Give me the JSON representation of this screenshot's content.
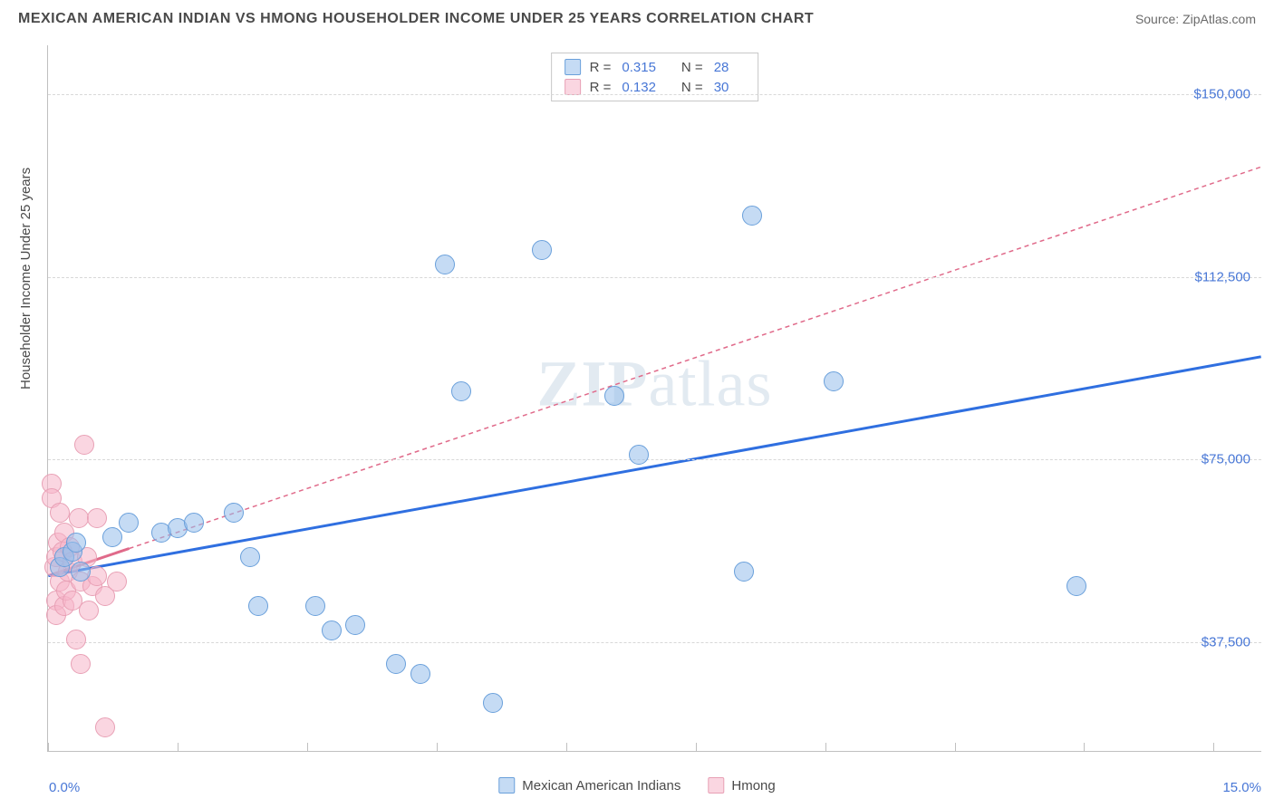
{
  "title": "MEXICAN AMERICAN INDIAN VS HMONG HOUSEHOLDER INCOME UNDER 25 YEARS CORRELATION CHART",
  "source": "Source: ZipAtlas.com",
  "watermark": "ZIPatlas",
  "chart": {
    "type": "scatter",
    "ylabel": "Householder Income Under 25 years",
    "xlim": [
      0,
      15
    ],
    "ylim": [
      15000,
      160000
    ],
    "x_ticks": [
      0,
      1.6,
      3.2,
      4.8,
      6.4,
      8.0,
      9.6,
      11.2,
      12.8,
      14.4
    ],
    "x_tick_labels": {
      "0": "0.0%",
      "15": "15.0%"
    },
    "y_ticks": [
      37500,
      75000,
      112500,
      150000
    ],
    "y_tick_labels": [
      "$37,500",
      "$75,000",
      "$112,500",
      "$150,000"
    ],
    "grid_color": "#d8d8d8",
    "background_color": "#ffffff",
    "axis_color": "#c0c0c0",
    "tick_label_color": "#4877d6",
    "marker_radius": 11,
    "series": {
      "blue": {
        "label": "Mexican American Indians",
        "fill": "rgba(150,190,235,0.55)",
        "stroke": "#6aa0db",
        "R": "0.315",
        "N": "28",
        "trend": {
          "x1": 0,
          "y1": 51000,
          "x2": 15,
          "y2": 96000,
          "color": "#2f6fe0",
          "width": 3,
          "dash": "none"
        },
        "points": [
          [
            0.15,
            53000
          ],
          [
            0.2,
            55000
          ],
          [
            0.3,
            56000
          ],
          [
            0.35,
            58000
          ],
          [
            0.4,
            52000
          ],
          [
            0.8,
            59000
          ],
          [
            1.0,
            62000
          ],
          [
            1.4,
            60000
          ],
          [
            1.6,
            61000
          ],
          [
            1.8,
            62000
          ],
          [
            2.3,
            64000
          ],
          [
            2.5,
            55000
          ],
          [
            2.6,
            45000
          ],
          [
            3.3,
            45000
          ],
          [
            3.5,
            40000
          ],
          [
            3.8,
            41000
          ],
          [
            4.3,
            33000
          ],
          [
            4.6,
            31000
          ],
          [
            4.9,
            115000
          ],
          [
            5.1,
            89000
          ],
          [
            5.5,
            25000
          ],
          [
            6.1,
            118000
          ],
          [
            7.0,
            88000
          ],
          [
            7.3,
            76000
          ],
          [
            8.6,
            52000
          ],
          [
            8.7,
            125000
          ],
          [
            9.7,
            91000
          ],
          [
            12.7,
            49000
          ]
        ]
      },
      "pink": {
        "label": "Hmong",
        "fill": "rgba(245,180,200,0.55)",
        "stroke": "#e8a0b5",
        "R": "0.132",
        "N": "30",
        "trend": {
          "x1": 0,
          "y1": 51000,
          "x2": 15,
          "y2": 135000,
          "color": "#e06a8a",
          "width": 1.5,
          "dash": "5,4",
          "solid_until": 1.0
        },
        "points": [
          [
            0.05,
            70000
          ],
          [
            0.05,
            67000
          ],
          [
            0.08,
            53000
          ],
          [
            0.1,
            55000
          ],
          [
            0.1,
            46000
          ],
          [
            0.1,
            43000
          ],
          [
            0.12,
            58000
          ],
          [
            0.15,
            64000
          ],
          [
            0.15,
            50000
          ],
          [
            0.18,
            56000
          ],
          [
            0.2,
            45000
          ],
          [
            0.2,
            60000
          ],
          [
            0.22,
            48000
          ],
          [
            0.25,
            52000
          ],
          [
            0.27,
            57000
          ],
          [
            0.3,
            46000
          ],
          [
            0.3,
            54000
          ],
          [
            0.35,
            38000
          ],
          [
            0.38,
            63000
          ],
          [
            0.4,
            50000
          ],
          [
            0.4,
            33000
          ],
          [
            0.45,
            78000
          ],
          [
            0.48,
            55000
          ],
          [
            0.5,
            44000
          ],
          [
            0.55,
            49000
          ],
          [
            0.6,
            63000
          ],
          [
            0.6,
            51000
          ],
          [
            0.7,
            47000
          ],
          [
            0.7,
            20000
          ],
          [
            0.85,
            50000
          ]
        ]
      }
    }
  },
  "legend_bottom": [
    {
      "key": "blue",
      "label": "Mexican American Indians"
    },
    {
      "key": "pink",
      "label": "Hmong"
    }
  ]
}
